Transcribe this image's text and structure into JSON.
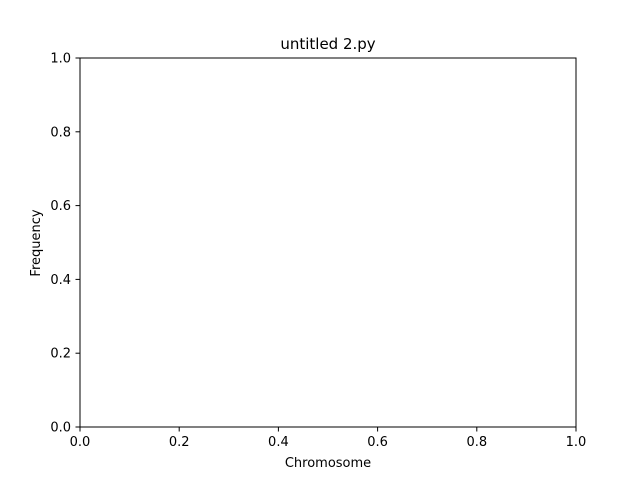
{
  "chart_data": {
    "type": "line",
    "title": "untitled 2.py",
    "xlabel": "Chromosome",
    "ylabel": "Frequency",
    "xlim": [
      0.0,
      1.0
    ],
    "ylim": [
      0.0,
      1.0
    ],
    "xticks": [
      "0.0",
      "0.2",
      "0.4",
      "0.6",
      "0.8",
      "1.0"
    ],
    "yticks": [
      "0.0",
      "0.2",
      "0.4",
      "0.6",
      "0.8",
      "1.0"
    ],
    "grid": false,
    "legend": "none",
    "series": []
  }
}
